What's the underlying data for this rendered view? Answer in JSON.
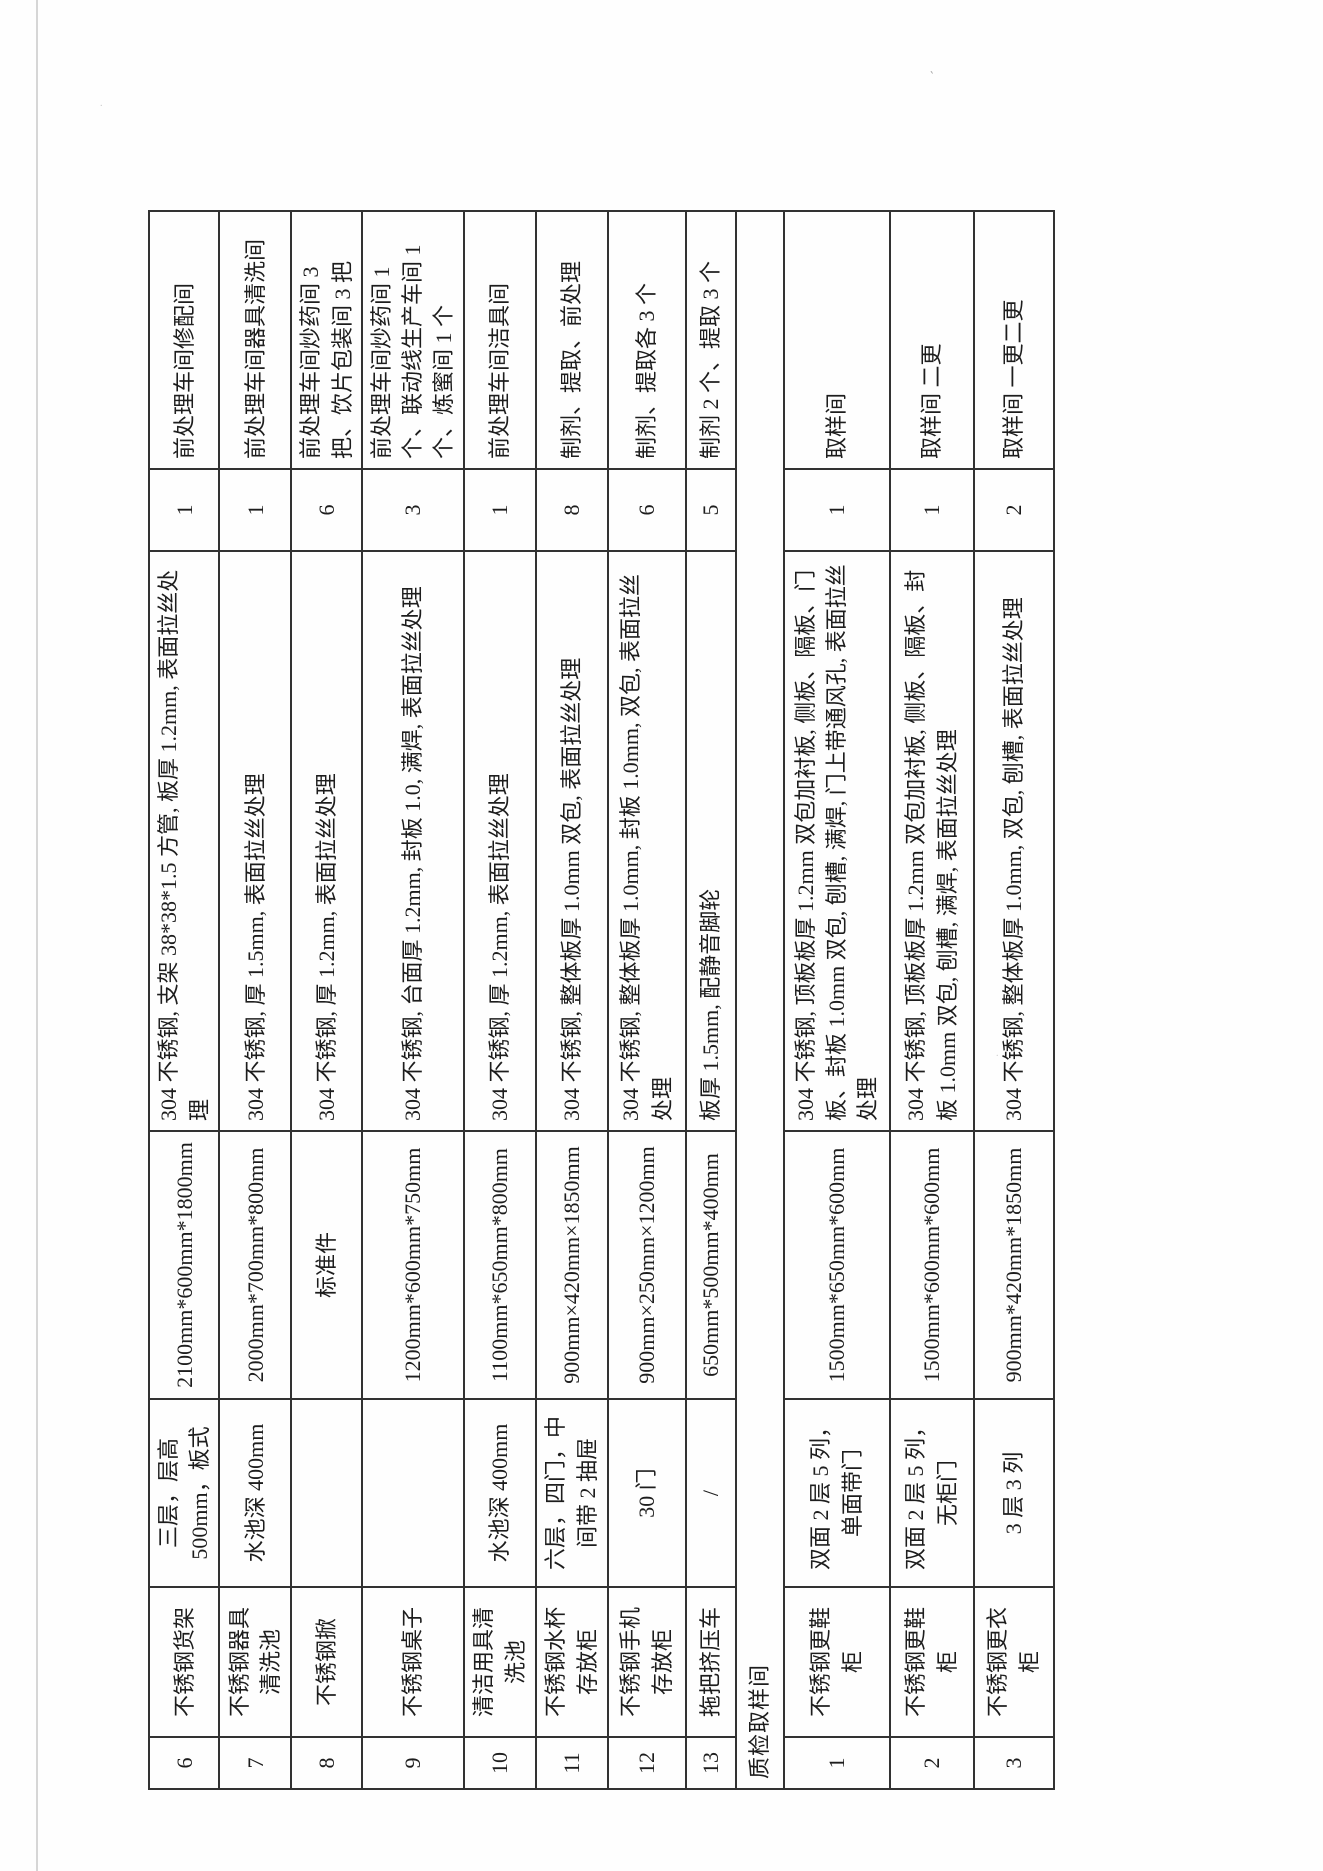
{
  "document": {
    "kind_label": "",
    "section_header": "质检取样间",
    "rows": [
      {
        "no": "6",
        "name": "不锈钢货架",
        "spec": "三层，层高 500mm，板式",
        "size": "2100mm*600mm*1800mm",
        "material": "304 不锈钢, 支架 38*38*1.5 方管, 板厚 1.2mm, 表面拉丝处理",
        "qty": "1",
        "location": "前处理车间修配间"
      },
      {
        "no": "7",
        "name": "不锈钢器具清洗池",
        "spec": "水池深 400mm",
        "size": "2000mm*700mm*800mm",
        "material": "304 不锈钢, 厚 1.5mm, 表面拉丝处理",
        "qty": "1",
        "location": "前处理车间器具清洗间"
      },
      {
        "no": "8",
        "name": "不锈钢掀",
        "spec": "",
        "size": "标准件",
        "material": "304 不锈钢, 厚 1.2mm, 表面拉丝处理",
        "qty": "6",
        "location": "前处理车间炒药间 3 把、饮片包装间 3 把"
      },
      {
        "no": "9",
        "name": "不锈钢桌子",
        "spec": "",
        "size": "1200mm*600mm*750mm",
        "material": "304 不锈钢, 台面厚 1.2mm, 封板 1.0, 满焊, 表面拉丝处理",
        "qty": "3",
        "location": "前处理车间炒药间 1 个、联动线生产车间 1 个、炼蜜间 1 个"
      },
      {
        "no": "10",
        "name": "清洁用具清洗池",
        "spec": "水池深 400mm",
        "size": "1100mm*650mm*800mm",
        "material": "304 不锈钢, 厚 1.2mm, 表面拉丝处理",
        "qty": "1",
        "location": "前处理车间洁具间"
      },
      {
        "no": "11",
        "name": "不锈钢水杯存放柜",
        "spec": "六层，四门，中间带 2 抽屉",
        "size": "900mm×420mm×1850mm",
        "material": "304 不锈钢, 整体板厚 1.0mm 双包, 表面拉丝处理",
        "qty": "8",
        "location": "制剂、提取、前处理"
      },
      {
        "no": "12",
        "name": "不锈钢手机存放柜",
        "spec": "30 门",
        "size": "900mm×250mm×1200mm",
        "material": "304 不锈钢, 整体板厚 1.0mm, 封板 1.0mm, 双包, 表面拉丝处理",
        "qty": "6",
        "location": "制剂、提取各 3 个"
      },
      {
        "no": "13",
        "name": "拖把挤压车",
        "spec": "/",
        "size": "650mm*500mm*400mm",
        "material": "板厚 1.5mm, 配静音脚轮",
        "qty": "5",
        "location": "制剂 2 个、提取 3 个"
      },
      {
        "section": "质检取样间"
      },
      {
        "no": "1",
        "name": "不锈钢更鞋柜",
        "spec": "双面 2 层 5 列，单面带门",
        "size": "1500mm*650mm*600mm",
        "material": "304 不锈钢, 顶板板厚 1.2mm 双包加衬板, 侧板、隔板、门板、封板 1.0mm 双包, 刨槽, 满焊, 门上带通风孔, 表面拉丝处理",
        "qty": "1",
        "location": "取样间"
      },
      {
        "no": "2",
        "name": "不锈钢更鞋柜",
        "spec": "双面 2 层 5 列，无柜门",
        "size": "1500mm*600mm*600mm",
        "material": "304 不锈钢, 顶板板厚 1.2mm 双包加衬板, 侧板、隔板、封板 1.0mm 双包, 刨槽, 满焊, 表面拉丝处理",
        "qty": "1",
        "location": "取样间 二更"
      },
      {
        "no": "3",
        "name": "不锈钢更衣柜",
        "spec": "3 层 3 列",
        "size": "900mm*420mm*1850mm",
        "material": "304 不锈钢, 整体板厚 1.0mm, 双包, 刨槽, 表面拉丝处理",
        "qty": "2",
        "location": "取样间 一更二更"
      }
    ]
  }
}
